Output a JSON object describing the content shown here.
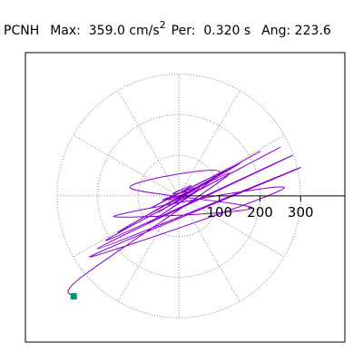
{
  "chart_data": {
    "type": "hodograph",
    "station": "PCNH",
    "max_text": "Max:  359.0 cm/s",
    "max_unit_sup": "2",
    "per_text": "Per:  0.320 s",
    "ang_text": "Ang: 223.6",
    "color": "#8a00d4",
    "end_marker_color": "#00996b",
    "xlim": [
      -378,
      409
    ],
    "ylim": [
      -360,
      353
    ],
    "rticks": [
      100,
      200,
      300
    ],
    "x": [
      0,
      20,
      -15,
      30,
      -25,
      40,
      -30,
      60,
      -50,
      90,
      -70,
      150,
      -100,
      200,
      -150,
      250,
      -180,
      280,
      -200,
      300,
      -220,
      260,
      -160,
      180,
      -120,
      100,
      -80,
      50,
      -40,
      20,
      -30,
      120,
      -240,
      -259
    ],
    "values": [
      0,
      10,
      5,
      25,
      -10,
      15,
      -20,
      30,
      -40,
      50,
      -30,
      80,
      -60,
      110,
      -90,
      120,
      -110,
      100,
      -130,
      70,
      -150,
      20,
      -50,
      -30,
      20,
      60,
      -70,
      20,
      -10,
      5,
      -20,
      50,
      -200,
      -247
    ]
  }
}
